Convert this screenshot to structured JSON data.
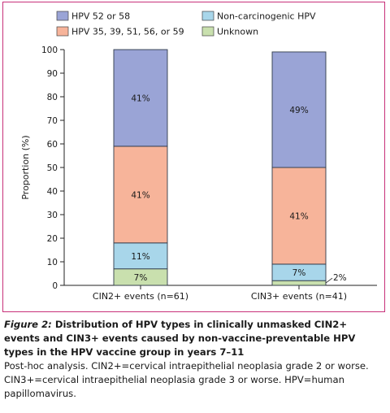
{
  "chart_data": {
    "type": "bar",
    "stacked": true,
    "ylabel": "Proportion (%)",
    "ylim": [
      0,
      100
    ],
    "yticks": [
      0,
      10,
      20,
      30,
      40,
      50,
      60,
      70,
      80,
      90,
      100
    ],
    "grid": false,
    "legend_position": "top-left",
    "categories": [
      "CIN2+ events (n=61)",
      "CIN3+ events (n=41)"
    ],
    "series": [
      {
        "name": "Unknown",
        "color": "#c9e0ae",
        "values": [
          7,
          2
        ],
        "labels": [
          "7%",
          "2%"
        ]
      },
      {
        "name": "Non-carcinogenic HPV",
        "color": "#a8d6ea",
        "values": [
          11,
          7
        ],
        "labels": [
          "11%",
          "7%"
        ]
      },
      {
        "name": "HPV 35, 39, 51, 56, or 59",
        "color": "#f7b49a",
        "values": [
          41,
          41
        ],
        "labels": [
          "41%",
          "41%"
        ]
      },
      {
        "name": "HPV 52 or 58",
        "color": "#9aa4d6",
        "values": [
          41,
          49
        ],
        "labels": [
          "41%",
          "49%"
        ]
      }
    ]
  },
  "caption": {
    "figure_label": "Figure 2:",
    "title": " Distribution of HPV types in clinically unmasked CIN2+ events and CIN3+ events caused by non-vaccine-preventable HPV types in the HPV vaccine group in years 7–11",
    "note": "Post-hoc analysis. CIN2+=cervical intraepithelial neoplasia grade 2 or worse. CIN3+=cervical intraepithelial neoplasia grade 3 or worse. HPV=human papillomavirus."
  }
}
